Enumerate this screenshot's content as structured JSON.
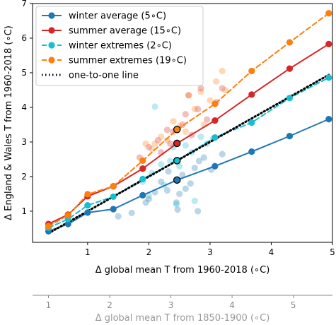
{
  "chart_data": {
    "type": "line",
    "xlabel": "Δ global mean T from 1960-2018 (∘C)",
    "ylabel": "Δ England & Wales T from 1960-2018 (∘C)",
    "xlim": [
      0.1,
      5.0
    ],
    "ylim": [
      0.1,
      7.0
    ],
    "xticks": [
      1,
      2,
      3,
      4,
      5
    ],
    "yticks": [
      1,
      2,
      3,
      4,
      5,
      6,
      7
    ],
    "secondary_xaxis": {
      "label": "Δ global mean T from 1850-1900 (∘C)",
      "ticks": [
        1,
        2,
        3,
        4,
        5
      ],
      "offset": 0.64
    },
    "legend_position": "top-left",
    "series": [
      {
        "name": "winter average (5∘C)",
        "color": "#1f77b4",
        "style": "solid",
        "x": [
          0.36,
          0.68,
          1.0,
          1.42,
          1.9,
          2.46,
          3.08,
          3.68,
          4.3,
          4.94
        ],
        "y": [
          0.42,
          0.63,
          0.96,
          1.06,
          1.46,
          1.9,
          2.3,
          2.72,
          3.17,
          3.66
        ]
      },
      {
        "name": "summer average (15∘C)",
        "color": "#d62728",
        "style": "solid",
        "x": [
          0.36,
          0.68,
          1.0,
          1.42,
          1.9,
          2.46,
          3.08,
          3.68,
          4.3,
          4.94
        ],
        "y": [
          0.63,
          0.9,
          1.43,
          1.72,
          2.23,
          2.96,
          3.62,
          4.37,
          5.12,
          5.83
        ]
      },
      {
        "name": "winter extremes (2∘C)",
        "color": "#17becf",
        "style": "dashed",
        "x": [
          0.36,
          0.68,
          1.0,
          1.42,
          1.9,
          2.46,
          3.08,
          3.68,
          4.3,
          4.94
        ],
        "y": [
          0.52,
          0.77,
          1.17,
          1.42,
          1.93,
          2.46,
          3.13,
          3.56,
          4.27,
          4.86
        ]
      },
      {
        "name": "summer extremes (19∘C)",
        "color": "#ff7f0e",
        "style": "dashed",
        "x": [
          0.36,
          0.68,
          1.0,
          1.42,
          1.9,
          2.46,
          3.08,
          3.68,
          4.3,
          4.94
        ],
        "y": [
          0.57,
          0.88,
          1.49,
          1.72,
          2.46,
          3.36,
          4.1,
          5.05,
          5.88,
          6.72
        ]
      },
      {
        "name": "one-to-one line",
        "color": "#000000",
        "style": "dotted",
        "x": [
          0.36,
          4.94
        ],
        "y": [
          0.36,
          4.94
        ]
      }
    ],
    "highlighted_x": 2.46,
    "scatter": [
      {
        "x": 1.5,
        "y": 0.85,
        "color": "#1f77b4"
      },
      {
        "x": 1.72,
        "y": 0.95,
        "color": "#1f77b4"
      },
      {
        "x": 1.95,
        "y": 1.25,
        "color": "#1f77b4"
      },
      {
        "x": 2.0,
        "y": 1.35,
        "color": "#1f77b4"
      },
      {
        "x": 2.1,
        "y": 1.55,
        "color": "#1f77b4"
      },
      {
        "x": 2.2,
        "y": 1.85,
        "color": "#1f77b4"
      },
      {
        "x": 2.3,
        "y": 1.6,
        "color": "#1f77b4"
      },
      {
        "x": 2.32,
        "y": 2.15,
        "color": "#1f77b4"
      },
      {
        "x": 2.45,
        "y": 1.25,
        "color": "#1f77b4"
      },
      {
        "x": 2.47,
        "y": 1.05,
        "color": "#1f77b4"
      },
      {
        "x": 2.55,
        "y": 2.05,
        "color": "#1f77b4"
      },
      {
        "x": 2.6,
        "y": 1.65,
        "color": "#1f77b4"
      },
      {
        "x": 2.68,
        "y": 1.8,
        "color": "#1f77b4"
      },
      {
        "x": 2.75,
        "y": 2.25,
        "color": "#1f77b4"
      },
      {
        "x": 2.8,
        "y": 1.0,
        "color": "#1f77b4"
      },
      {
        "x": 2.82,
        "y": 2.45,
        "color": "#1f77b4"
      },
      {
        "x": 2.9,
        "y": 2.55,
        "color": "#1f77b4"
      },
      {
        "x": 3.02,
        "y": 2.2,
        "color": "#1f77b4"
      },
      {
        "x": 3.2,
        "y": 2.65,
        "color": "#1f77b4"
      },
      {
        "x": 2.5,
        "y": 1.5,
        "color": "#1f77b4"
      },
      {
        "x": 1.9,
        "y": 1.85,
        "color": "#17becf"
      },
      {
        "x": 2.05,
        "y": 2.1,
        "color": "#17becf"
      },
      {
        "x": 2.1,
        "y": 4.02,
        "color": "#17becf"
      },
      {
        "x": 2.2,
        "y": 2.35,
        "color": "#17becf"
      },
      {
        "x": 2.35,
        "y": 2.45,
        "color": "#17becf"
      },
      {
        "x": 2.4,
        "y": 2.85,
        "color": "#17becf"
      },
      {
        "x": 2.45,
        "y": 1.2,
        "color": "#17becf"
      },
      {
        "x": 2.5,
        "y": 2.3,
        "color": "#17becf"
      },
      {
        "x": 2.6,
        "y": 2.9,
        "color": "#17becf"
      },
      {
        "x": 2.7,
        "y": 2.7,
        "color": "#17becf"
      },
      {
        "x": 2.75,
        "y": 1.3,
        "color": "#17becf"
      },
      {
        "x": 2.85,
        "y": 3.15,
        "color": "#17becf"
      },
      {
        "x": 2.95,
        "y": 2.95,
        "color": "#17becf"
      },
      {
        "x": 3.05,
        "y": 3.1,
        "color": "#17becf"
      },
      {
        "x": 2.25,
        "y": 1.75,
        "color": "#17becf"
      },
      {
        "x": 2.0,
        "y": 1.45,
        "color": "#17becf"
      },
      {
        "x": 1.85,
        "y": 2.55,
        "color": "#d62728"
      },
      {
        "x": 2.0,
        "y": 2.85,
        "color": "#d62728"
      },
      {
        "x": 2.15,
        "y": 3.05,
        "color": "#d62728"
      },
      {
        "x": 2.2,
        "y": 2.7,
        "color": "#d62728"
      },
      {
        "x": 2.3,
        "y": 3.35,
        "color": "#d62728"
      },
      {
        "x": 2.4,
        "y": 3.3,
        "color": "#d62728"
      },
      {
        "x": 2.55,
        "y": 3.5,
        "color": "#d62728"
      },
      {
        "x": 2.6,
        "y": 3.8,
        "color": "#d62728"
      },
      {
        "x": 2.65,
        "y": 4.35,
        "color": "#d62728"
      },
      {
        "x": 2.7,
        "y": 3.2,
        "color": "#d62728"
      },
      {
        "x": 2.8,
        "y": 3.95,
        "color": "#d62728"
      },
      {
        "x": 2.85,
        "y": 4.55,
        "color": "#d62728"
      },
      {
        "x": 2.95,
        "y": 3.65,
        "color": "#d62728"
      },
      {
        "x": 3.1,
        "y": 4.15,
        "color": "#d62728"
      },
      {
        "x": 3.2,
        "y": 4.55,
        "color": "#d62728"
      },
      {
        "x": 2.35,
        "y": 2.95,
        "color": "#d62728"
      },
      {
        "x": 1.95,
        "y": 2.95,
        "color": "#ff7f0e"
      },
      {
        "x": 2.05,
        "y": 2.8,
        "color": "#ff7f0e"
      },
      {
        "x": 2.1,
        "y": 2.95,
        "color": "#ff7f0e"
      },
      {
        "x": 2.2,
        "y": 3.15,
        "color": "#ff7f0e"
      },
      {
        "x": 2.3,
        "y": 3.05,
        "color": "#ff7f0e"
      },
      {
        "x": 2.4,
        "y": 3.6,
        "color": "#ff7f0e"
      },
      {
        "x": 2.5,
        "y": 3.45,
        "color": "#ff7f0e"
      },
      {
        "x": 2.6,
        "y": 3.3,
        "color": "#ff7f0e"
      },
      {
        "x": 2.65,
        "y": 4.35,
        "color": "#ff7f0e"
      },
      {
        "x": 2.75,
        "y": 3.95,
        "color": "#ff7f0e"
      },
      {
        "x": 2.85,
        "y": 4.45,
        "color": "#ff7f0e"
      },
      {
        "x": 3.0,
        "y": 4.2,
        "color": "#ff7f0e"
      },
      {
        "x": 3.1,
        "y": 4.75,
        "color": "#ff7f0e"
      },
      {
        "x": 3.2,
        "y": 5.05,
        "color": "#ff7f0e"
      },
      {
        "x": 3.25,
        "y": 4.5,
        "color": "#ff7f0e"
      },
      {
        "x": 2.9,
        "y": 3.5,
        "color": "#ff7f0e"
      }
    ]
  }
}
